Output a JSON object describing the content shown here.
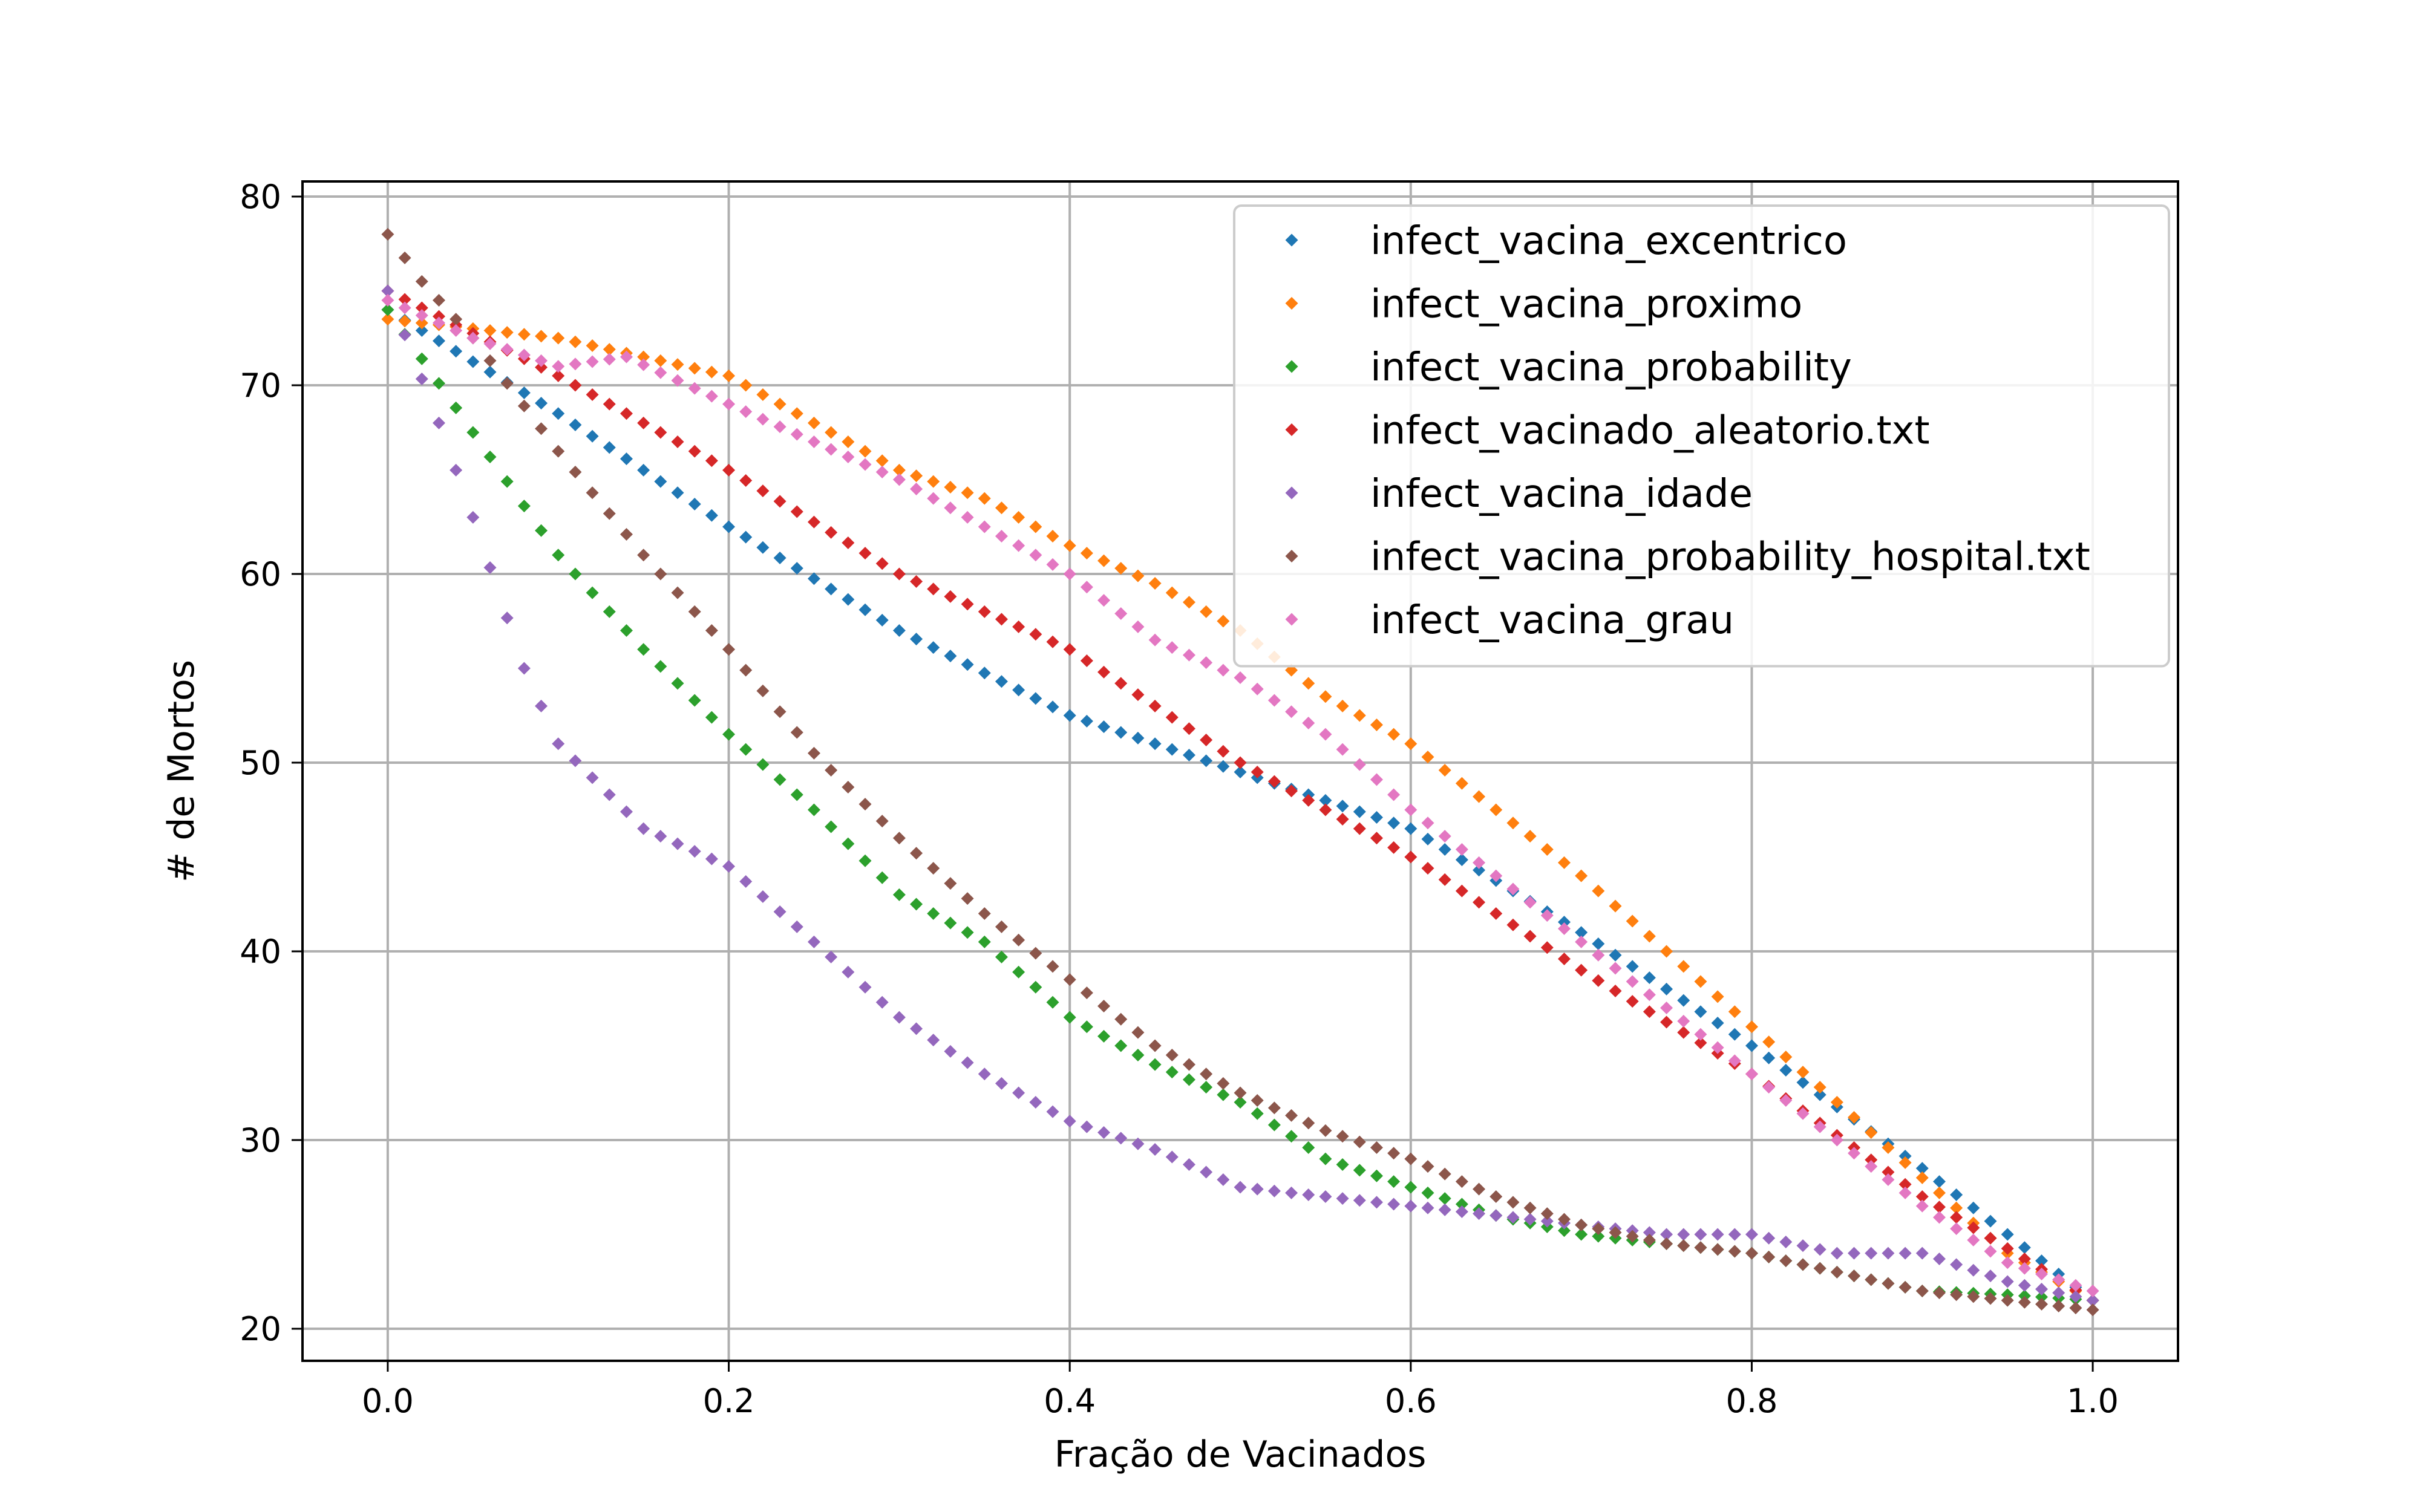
{
  "chart_data": {
    "type": "scatter",
    "title": "",
    "xlabel": "Fração de Vacinados",
    "ylabel": "# de Mortos",
    "xlim": [
      -0.05,
      1.05
    ],
    "ylim": [
      18.3,
      80.8
    ],
    "xticks": [
      0.0,
      0.2,
      0.4,
      0.6,
      0.8,
      1.0
    ],
    "xtick_labels": [
      "0.0",
      "0.2",
      "0.4",
      "0.6",
      "0.8",
      "1.0"
    ],
    "yticks": [
      20,
      30,
      40,
      50,
      60,
      70,
      80
    ],
    "ytick_labels": [
      "20",
      "30",
      "40",
      "50",
      "60",
      "70",
      "80"
    ],
    "grid": true,
    "legend_position": "top-right",
    "marker": "diamond",
    "series": [
      {
        "name": "infect_vacina_excentrico",
        "color": "#1f77b4",
        "x_points": [
          0,
          0.1,
          0.2,
          0.3,
          0.4,
          0.5,
          0.6,
          0.7,
          0.8,
          0.9,
          1.0
        ],
        "y_points": [
          74,
          68.5,
          62.5,
          57,
          52.5,
          49.5,
          46.5,
          41,
          35,
          28.5,
          21.5
        ]
      },
      {
        "name": "infect_vacina_proximo",
        "color": "#ff7f0e",
        "x_points": [
          0,
          0.05,
          0.1,
          0.15,
          0.2,
          0.25,
          0.3,
          0.35,
          0.4,
          0.45,
          0.5,
          0.55,
          0.6,
          0.65,
          0.7,
          0.75,
          0.8,
          0.85,
          0.9,
          0.95,
          1.0
        ],
        "y_points": [
          73.5,
          73,
          72.5,
          71.5,
          70.5,
          68,
          65.5,
          64,
          61.5,
          59.5,
          57,
          53.5,
          51,
          47.5,
          44,
          40,
          36,
          32,
          28,
          24,
          21.5
        ]
      },
      {
        "name": "infect_vacina_probability",
        "color": "#2ca02c",
        "x_points": [
          0,
          0.05,
          0.1,
          0.15,
          0.2,
          0.25,
          0.3,
          0.35,
          0.4,
          0.45,
          0.5,
          0.55,
          0.6,
          0.65,
          0.7,
          0.75,
          0.8,
          0.85,
          0.9,
          0.95,
          1.0
        ],
        "y_points": [
          74,
          67.5,
          61,
          56,
          51.5,
          47.5,
          43,
          40.5,
          36.5,
          34,
          32,
          29,
          27.5,
          26,
          25,
          24.5,
          24,
          23,
          22,
          21.8,
          21.5
        ]
      },
      {
        "name": "infect_vacinado_aleatorio.txt",
        "color": "#d62728",
        "x_points": [
          0,
          0.1,
          0.2,
          0.3,
          0.4,
          0.5,
          0.6,
          0.7,
          0.8,
          0.9,
          1.0
        ],
        "y_points": [
          75,
          70.5,
          65.5,
          60,
          56,
          50,
          45,
          39,
          33.5,
          27,
          21.5
        ]
      },
      {
        "name": "infect_vacina_idade",
        "color": "#9467bd",
        "x_points": [
          0,
          0.03,
          0.05,
          0.08,
          0.1,
          0.15,
          0.2,
          0.25,
          0.3,
          0.35,
          0.4,
          0.45,
          0.5,
          0.55,
          0.6,
          0.65,
          0.7,
          0.75,
          0.8,
          0.85,
          0.9,
          0.95,
          1.0
        ],
        "y_points": [
          75,
          68,
          63,
          55,
          51,
          46.5,
          44.5,
          40.5,
          36.5,
          33.5,
          31,
          29.5,
          27.5,
          27,
          26.5,
          26,
          25.5,
          25,
          25,
          24,
          24,
          22.5,
          21.5
        ]
      },
      {
        "name": "infect_vacina_probability_hospital.txt",
        "color": "#8c564b",
        "x_points": [
          0,
          0.02,
          0.05,
          0.1,
          0.15,
          0.2,
          0.25,
          0.3,
          0.35,
          0.4,
          0.45,
          0.5,
          0.55,
          0.6,
          0.65,
          0.7,
          0.75,
          0.8,
          0.85,
          0.9,
          0.95,
          1.0
        ],
        "y_points": [
          78,
          75.5,
          72.5,
          66.5,
          61,
          56,
          50.5,
          46,
          42,
          38.5,
          35,
          32.5,
          30.5,
          29,
          27,
          25.5,
          24.5,
          24,
          23,
          22,
          21.5,
          21
        ]
      },
      {
        "name": "infect_vacina_grau",
        "color": "#e377c2",
        "x_points": [
          0,
          0.05,
          0.1,
          0.14,
          0.2,
          0.25,
          0.3,
          0.35,
          0.4,
          0.45,
          0.5,
          0.55,
          0.6,
          0.65,
          0.7,
          0.75,
          0.8,
          0.85,
          0.9,
          0.95,
          1.0
        ],
        "y_points": [
          74.5,
          72.5,
          71,
          71.5,
          69,
          67,
          65,
          62.5,
          60,
          56.5,
          54.5,
          51.5,
          47.5,
          44,
          40.5,
          37,
          33.5,
          30,
          26.5,
          23.5,
          22
        ]
      }
    ]
  }
}
